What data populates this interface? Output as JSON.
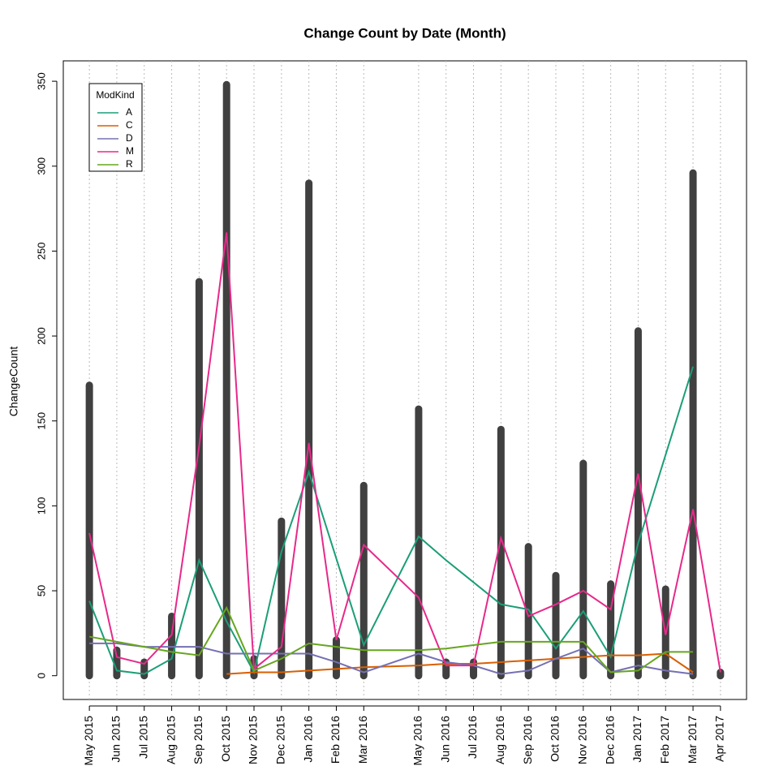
{
  "chart_data": {
    "type": "line",
    "title": "Change Count by Date (Month)",
    "ylabel": "ChangeCount",
    "legend_title": "ModKind",
    "legend": "top-left",
    "grid": true,
    "x": [
      "May 2015",
      "Jun 2015",
      "Jul 2015",
      "Aug 2015",
      "Sep 2015",
      "Oct 2015",
      "Nov 2015",
      "Dec 2015",
      "Jan 2016",
      "Feb 2016",
      "Mar 2016",
      "May 2016",
      "Jun 2016",
      "Jul 2016",
      "Aug 2016",
      "Sep 2016",
      "Oct 2016",
      "Nov 2016",
      "Dec 2016",
      "Jan 2017",
      "Feb 2017",
      "Mar 2017",
      "Apr 2017"
    ],
    "ylim": [
      -14,
      362
    ],
    "yticks": [
      0,
      50,
      100,
      150,
      200,
      250,
      300,
      350
    ],
    "bars": {
      "color": "#404040",
      "values": [
        171,
        15,
        8,
        35,
        232,
        348,
        10,
        91,
        290,
        21,
        112,
        157,
        8,
        8,
        145,
        76,
        59,
        125,
        54,
        203,
        51,
        296,
        2
      ]
    },
    "series": [
      {
        "name": "A",
        "color": "#1b9e77",
        "values": [
          44,
          3,
          1,
          10,
          68,
          32,
          2,
          73,
          120,
          69,
          18,
          82,
          68,
          55,
          42,
          39,
          16,
          38,
          11,
          78,
          130,
          182,
          null
        ]
      },
      {
        "name": "C",
        "color": "#d95f02",
        "values": [
          null,
          null,
          null,
          null,
          null,
          1,
          2,
          2,
          3,
          4,
          5,
          6,
          7,
          7,
          8,
          9,
          10,
          11,
          12,
          12,
          13,
          2,
          null
        ]
      },
      {
        "name": "D",
        "color": "#7570b3",
        "values": [
          19,
          19,
          17,
          17,
          17,
          13,
          13,
          13,
          13,
          8,
          2,
          13,
          8,
          6,
          1,
          3,
          10,
          16,
          2,
          6,
          3,
          1,
          null
        ]
      },
      {
        "name": "M",
        "color": "#e7298a",
        "values": [
          84,
          11,
          7,
          24,
          135,
          261,
          4,
          17,
          137,
          21,
          77,
          46,
          6,
          6,
          81,
          35,
          42,
          50,
          39,
          119,
          24,
          98,
          2
        ]
      },
      {
        "name": "R",
        "color": "#66a61e",
        "values": [
          23,
          20,
          17,
          14,
          12,
          40,
          3,
          10,
          19,
          17,
          15,
          15,
          16,
          18,
          20,
          20,
          20,
          20,
          2,
          3,
          14,
          14,
          null
        ]
      }
    ]
  }
}
